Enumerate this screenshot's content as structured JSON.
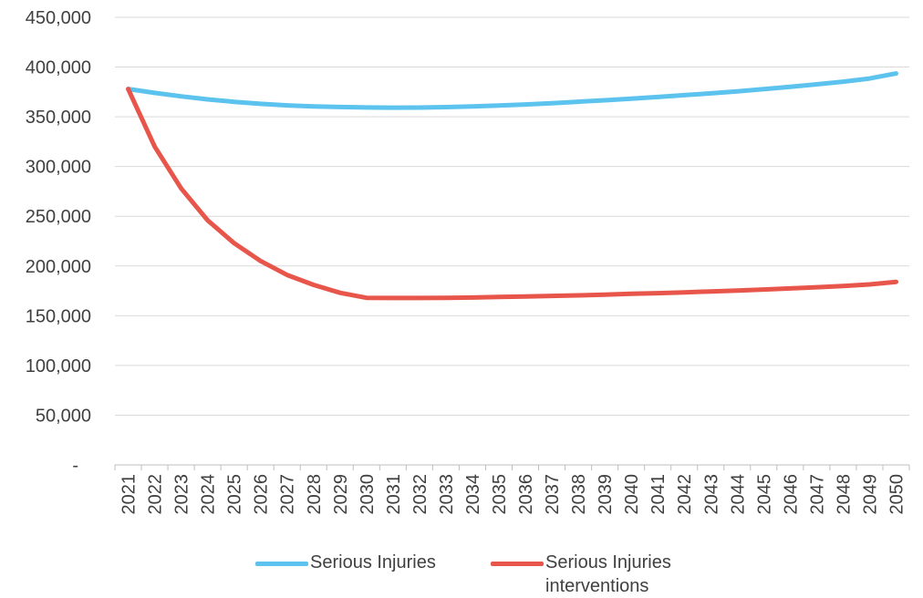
{
  "chart_data": {
    "type": "line",
    "title": "",
    "xlabel": "",
    "ylabel": "",
    "ylim": [
      0,
      450000
    ],
    "yticks": [
      0,
      50000,
      100000,
      150000,
      200000,
      250000,
      300000,
      350000,
      400000,
      450000
    ],
    "ytick_labels": [
      "-",
      "50,000",
      "100,000",
      "150,000",
      "200,000",
      "250,000",
      "300,000",
      "350,000",
      "400,000",
      "450,000"
    ],
    "grid": "horizontal",
    "legend_position": "bottom",
    "categories": [
      "2021",
      "2022",
      "2023",
      "2024",
      "2025",
      "2026",
      "2027",
      "2028",
      "2029",
      "2030",
      "2031",
      "2032",
      "2033",
      "2034",
      "2035",
      "2036",
      "2037",
      "2038",
      "2039",
      "2040",
      "2041",
      "2042",
      "2043",
      "2044",
      "2045",
      "2046",
      "2047",
      "2048",
      "2049",
      "2050"
    ],
    "series": [
      {
        "name": "Serious Injuries",
        "color": "#5BC3EE",
        "values": [
          378000,
          374000,
          370500,
          367500,
          365000,
          363000,
          361500,
          360500,
          359800,
          359400,
          359200,
          359300,
          359700,
          360400,
          361300,
          362400,
          363700,
          365100,
          366600,
          368200,
          369900,
          371700,
          373600,
          375600,
          377800,
          380100,
          382600,
          385300,
          388500,
          393500
        ]
      },
      {
        "name": "Serious Injuries interventions",
        "color": "#E8554A",
        "values": [
          378000,
          320000,
          278000,
          246000,
          223000,
          205000,
          191000,
          181000,
          173000,
          168000,
          167800,
          167800,
          167900,
          168300,
          168800,
          169300,
          169900,
          170500,
          171200,
          172000,
          172700,
          173500,
          174400,
          175300,
          176300,
          177400,
          178600,
          179900,
          181500,
          184000
        ]
      }
    ]
  },
  "legend": {
    "item1_label": "Serious Injuries",
    "item2_line1": "Serious Injuries",
    "item2_line2": "interventions"
  }
}
